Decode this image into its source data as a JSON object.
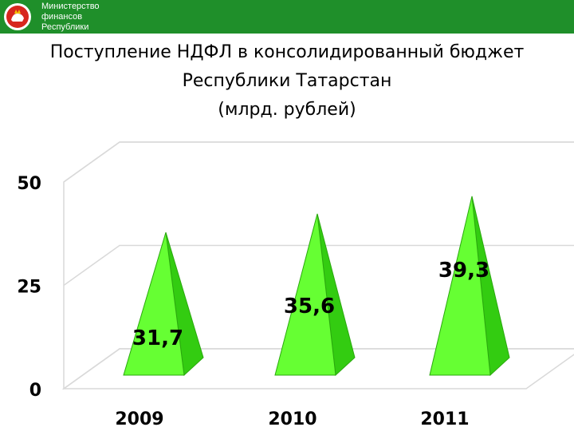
{
  "header": {
    "ministry_lines": [
      "Министерство",
      "финансов",
      "Республики"
    ]
  },
  "slide": {
    "title_lines": [
      "Поступление НДФЛ в консолидированный бюджет",
      "Республики Татарстан",
      "(млрд. рублей)"
    ]
  },
  "chart_data": {
    "type": "bar",
    "categories": [
      "2009",
      "2010",
      "2011"
    ],
    "values": [
      31.7,
      35.6,
      39.3
    ],
    "value_labels": [
      "31,7",
      "35,6",
      "39,3"
    ],
    "y_ticks": [
      "0",
      "25",
      "50"
    ],
    "ylim": [
      0,
      50
    ],
    "bar_shape": "pyramid",
    "grid": true,
    "legend": "none",
    "colors": {
      "pyramid_light": "#66ff33",
      "pyramid_dark": "#33cc11",
      "pyramid_outline": "#2aa80e"
    }
  }
}
